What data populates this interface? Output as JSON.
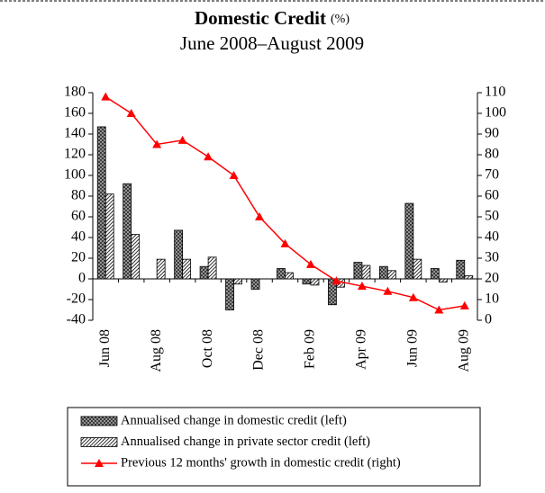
{
  "chart_data": {
    "type": "bar_line",
    "title": "Domestic Credit",
    "title_unit": "(%)",
    "subtitle": "June 2008–August 2009",
    "categories": [
      "Jun 08",
      null,
      "Aug 08",
      null,
      "Oct 08",
      null,
      "Dec 08",
      null,
      "Feb 09",
      null,
      "Apr 09",
      null,
      "Jun 09",
      null,
      "Aug 09"
    ],
    "series": [
      {
        "name": "Annualised change in domestic credit (left)",
        "color": "#333333",
        "type": "bar",
        "values": [
          147,
          92,
          0,
          47,
          12,
          -30,
          -10,
          10,
          -5,
          -25,
          16,
          12,
          73,
          10,
          18
        ]
      },
      {
        "name": "Annualised change in private sector credit (left)",
        "color": "#bbbbbb",
        "type": "bar",
        "values": [
          82,
          43,
          19,
          19,
          21,
          -5,
          0,
          6,
          -6,
          -8,
          13,
          8,
          19,
          -3,
          3
        ]
      },
      {
        "name": "Previous 12 months' growth in domestic credit (right)",
        "color": "#ff0000",
        "type": "line",
        "axis": "y2",
        "values": [
          108,
          100,
          85,
          87,
          79,
          70,
          50,
          37,
          27,
          19,
          16.5,
          14,
          11,
          5,
          7
        ]
      }
    ],
    "ylim": [
      -40,
      180
    ],
    "yticks": [
      -40,
      -20,
      0,
      20,
      40,
      60,
      80,
      100,
      120,
      140,
      160,
      180
    ],
    "y2lim": [
      0,
      110
    ],
    "y2ticks": [
      0,
      10,
      20,
      30,
      40,
      50,
      60,
      70,
      80,
      90,
      100,
      110
    ],
    "legend": "bottom"
  }
}
